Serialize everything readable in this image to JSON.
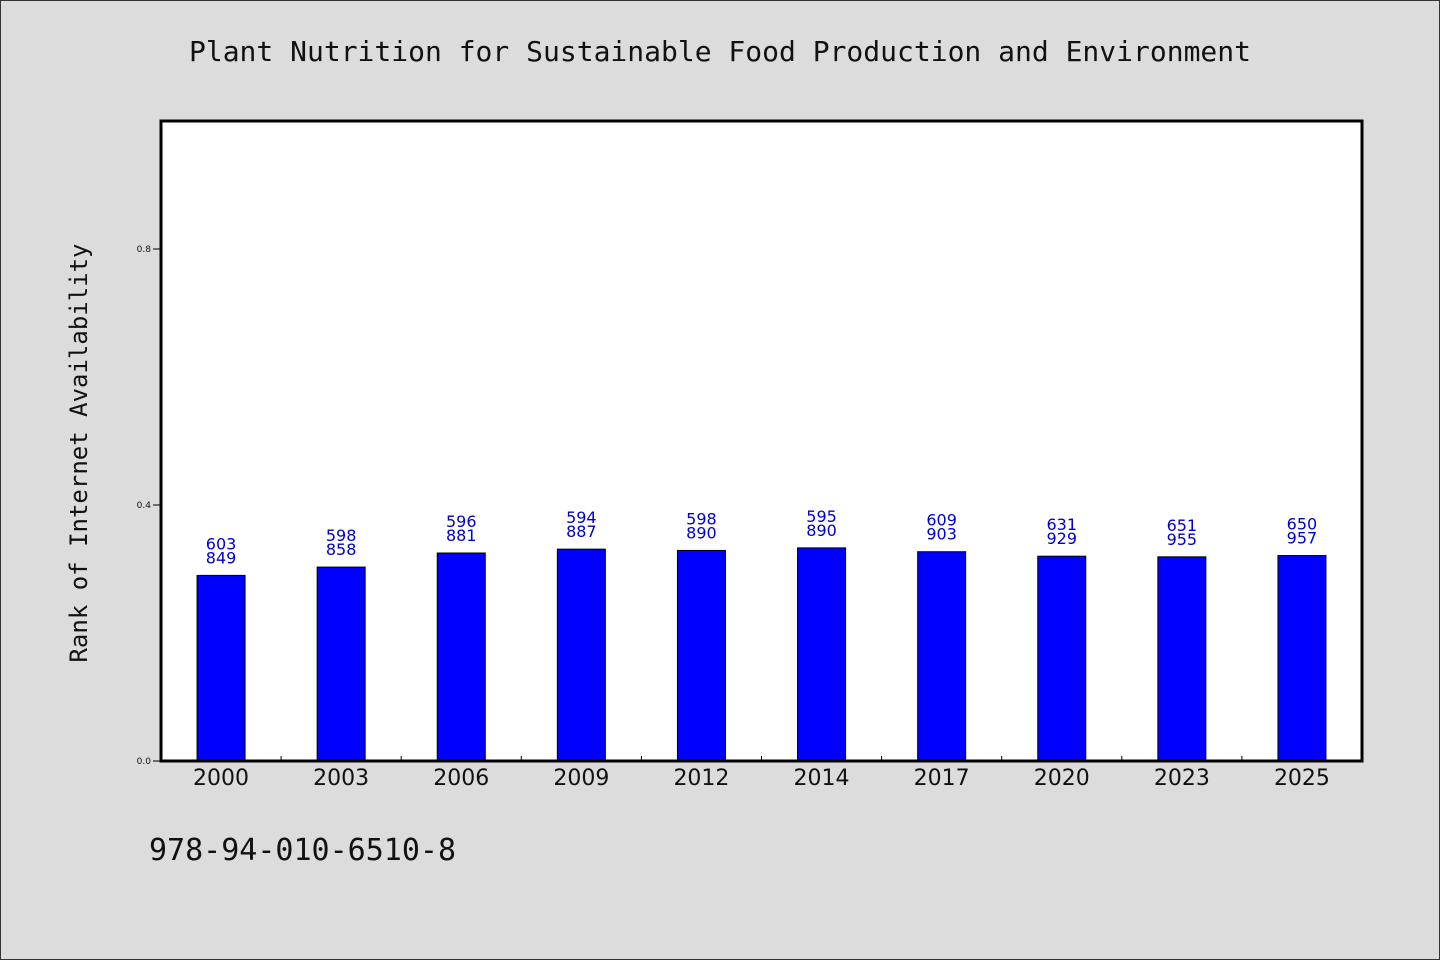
{
  "chart_data": {
    "type": "bar",
    "title": "Plant Nutrition for Sustainable Food Production and Environment",
    "xlabel": "",
    "ylabel": "Rank of Internet Availability",
    "categories": [
      "2000",
      "2003",
      "2006",
      "2009",
      "2012",
      "2014",
      "2017",
      "2020",
      "2023",
      "2025"
    ],
    "values": [
      0.29,
      0.303,
      0.325,
      0.331,
      0.329,
      0.333,
      0.327,
      0.32,
      0.319,
      0.321
    ],
    "data_labels": [
      [
        "603",
        "849"
      ],
      [
        "598",
        "858"
      ],
      [
        "596",
        "881"
      ],
      [
        "594",
        "887"
      ],
      [
        "598",
        "890"
      ],
      [
        "595",
        "890"
      ],
      [
        "609",
        "903"
      ],
      [
        "631",
        "929"
      ],
      [
        "651",
        "955"
      ],
      [
        "650",
        "957"
      ]
    ],
    "ylim": [
      0,
      1.0
    ],
    "yticks": [
      "0.0",
      "0.4",
      "0.8"
    ],
    "ytick_values": [
      0,
      0.4,
      0.8
    ],
    "grid": false,
    "bar_color": "#0000ff",
    "label_color": "#0000cc"
  },
  "footer_text": "978-94-010-6510-8"
}
